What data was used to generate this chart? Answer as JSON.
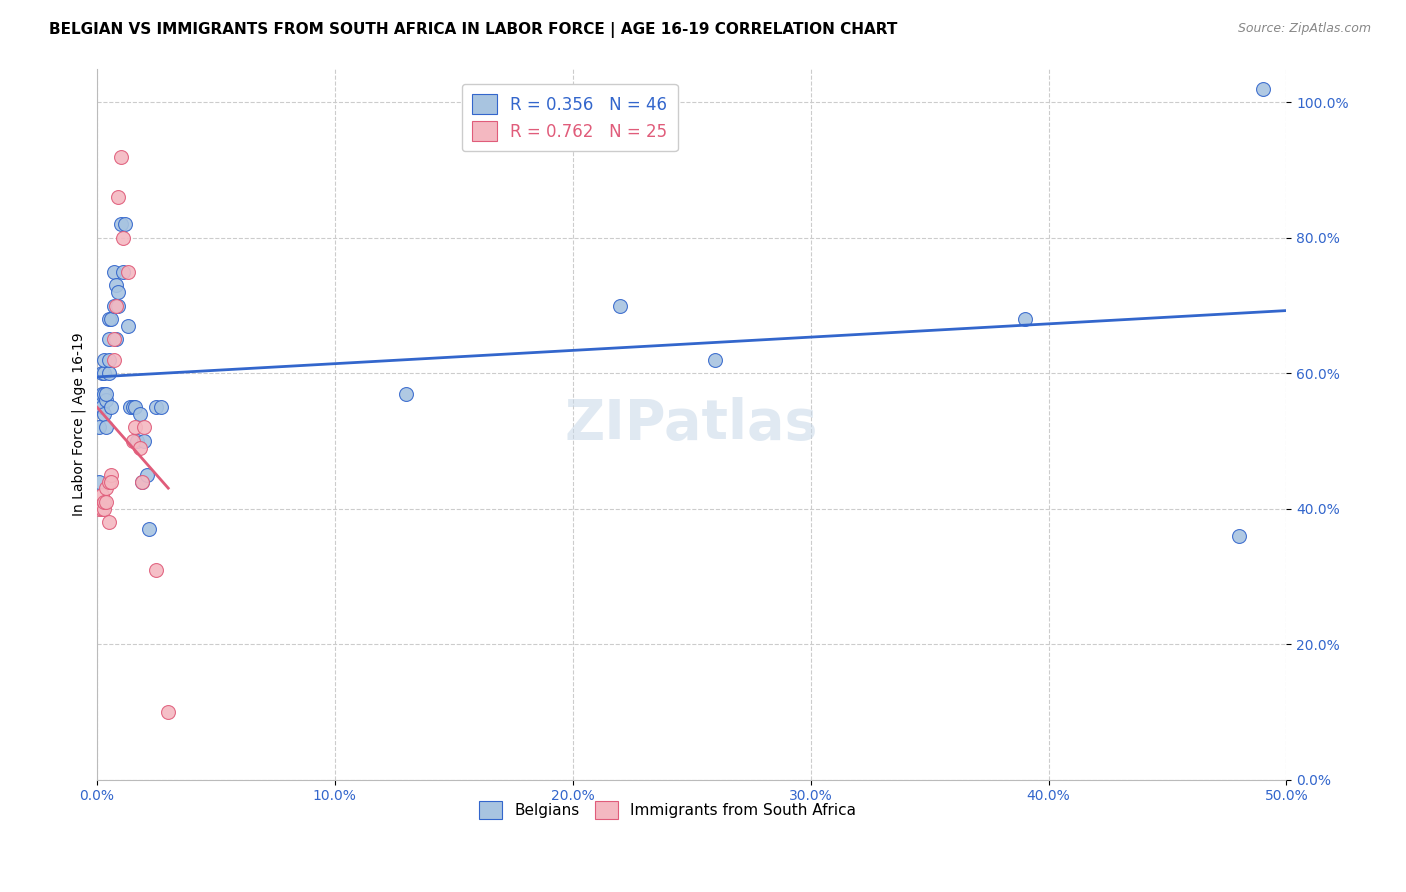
{
  "title": "BELGIAN VS IMMIGRANTS FROM SOUTH AFRICA IN LABOR FORCE | AGE 16-19 CORRELATION CHART",
  "source": "Source: ZipAtlas.com",
  "ylabel": "In Labor Force | Age 16-19",
  "xlim": [
    0.0,
    0.5
  ],
  "ylim": [
    0.0,
    1.05
  ],
  "belgian_x": [
    0.001,
    0.001,
    0.001,
    0.002,
    0.002,
    0.002,
    0.003,
    0.003,
    0.003,
    0.003,
    0.004,
    0.004,
    0.004,
    0.005,
    0.005,
    0.005,
    0.005,
    0.006,
    0.006,
    0.007,
    0.007,
    0.008,
    0.008,
    0.009,
    0.009,
    0.01,
    0.011,
    0.012,
    0.013,
    0.014,
    0.015,
    0.016,
    0.017,
    0.018,
    0.019,
    0.02,
    0.021,
    0.022,
    0.025,
    0.027,
    0.13,
    0.22,
    0.26,
    0.39,
    0.48,
    0.49
  ],
  "belgian_y": [
    0.44,
    0.52,
    0.56,
    0.55,
    0.57,
    0.6,
    0.54,
    0.57,
    0.6,
    0.62,
    0.52,
    0.56,
    0.57,
    0.6,
    0.62,
    0.65,
    0.68,
    0.55,
    0.68,
    0.7,
    0.75,
    0.73,
    0.65,
    0.7,
    0.72,
    0.82,
    0.75,
    0.82,
    0.67,
    0.55,
    0.55,
    0.55,
    0.5,
    0.54,
    0.44,
    0.5,
    0.45,
    0.37,
    0.55,
    0.55,
    0.57,
    0.7,
    0.62,
    0.68,
    0.36,
    1.02
  ],
  "sa_x": [
    0.001,
    0.002,
    0.002,
    0.003,
    0.003,
    0.004,
    0.004,
    0.005,
    0.005,
    0.006,
    0.006,
    0.007,
    0.007,
    0.008,
    0.009,
    0.01,
    0.011,
    0.013,
    0.015,
    0.016,
    0.018,
    0.019,
    0.02,
    0.025,
    0.03
  ],
  "sa_y": [
    0.4,
    0.4,
    0.42,
    0.4,
    0.41,
    0.41,
    0.43,
    0.38,
    0.44,
    0.45,
    0.44,
    0.62,
    0.65,
    0.7,
    0.86,
    0.92,
    0.8,
    0.75,
    0.5,
    0.52,
    0.49,
    0.44,
    0.52,
    0.31,
    0.1
  ],
  "belgian_R": 0.356,
  "belgian_N": 46,
  "sa_R": 0.762,
  "sa_N": 25,
  "belgian_color": "#a8c4e0",
  "sa_color": "#f4b8c1",
  "belgian_line_color": "#3366cc",
  "sa_line_color": "#e05c7a",
  "legend_belgian_label": "Belgians",
  "legend_sa_label": "Immigrants from South Africa",
  "watermark": "ZIPatlas",
  "title_fontsize": 11,
  "label_fontsize": 10,
  "tick_fontsize": 10,
  "source_fontsize": 9,
  "grid_color": "#cccccc",
  "grid_linestyle": "--",
  "background_color": "#ffffff",
  "yticks": [
    0.0,
    0.2,
    0.4,
    0.6,
    0.8,
    1.0
  ],
  "xticks": [
    0.0,
    0.1,
    0.2,
    0.3,
    0.4,
    0.5
  ]
}
